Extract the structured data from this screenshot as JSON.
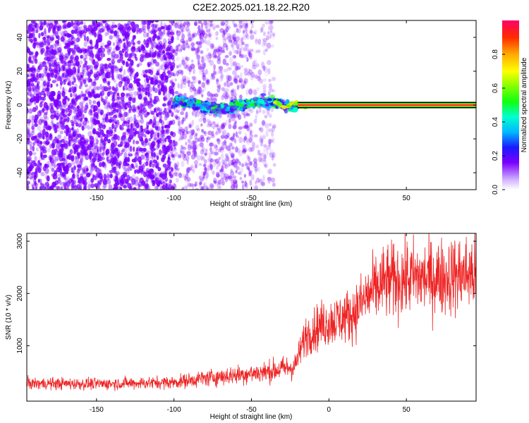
{
  "title": "C2E2.2025.021.18.22.R20",
  "colors": {
    "specgram_low": "#7B00FF",
    "snr_line": "#EE2222",
    "carrier_center": "#FF1133",
    "carrier_edge": "#22DD00"
  },
  "chart_data": [
    {
      "type": "heatmap",
      "title": "C2E2.2025.021.18.22.R20",
      "xlabel": "Height of straight line (km)",
      "ylabel": "Frequency (Hz)",
      "xlim": [
        -195,
        95
      ],
      "ylim": [
        -50,
        50
      ],
      "xticks": [
        -150,
        -100,
        -50,
        0,
        50
      ],
      "yticks": [
        -40,
        -20,
        0,
        20,
        40
      ],
      "colorbar": {
        "label": "Normalized spectral amplitude",
        "range": [
          0.0,
          1.0
        ],
        "ticks": [
          0.0,
          0.2,
          0.4,
          0.6,
          0.8
        ],
        "tick_labels": [
          "0.0",
          "0.2",
          "0.4",
          "0.6",
          "0.8"
        ]
      },
      "carrier": {
        "frequency_hz": 0,
        "from_km": -20,
        "to_km": 95,
        "amplitude": 1.0
      },
      "noise_zones": [
        {
          "from_km": -195,
          "to_km": -100,
          "density": "high",
          "amplitude": 0.15
        },
        {
          "from_km": -100,
          "to_km": -50,
          "density": "medium",
          "amplitude": 0.1
        },
        {
          "from_km": -50,
          "to_km": -35,
          "density": "low",
          "amplitude": 0.05
        }
      ],
      "signal_band": {
        "from_km": -100,
        "to_km": -20,
        "freq_spread_hz": 5,
        "amplitude": 0.25
      }
    },
    {
      "type": "line",
      "xlabel": "Height of straight line (km)",
      "ylabel": "SNR (10 * v/v)",
      "xlim": [
        -195,
        95
      ],
      "ylim": [
        -60,
        3150
      ],
      "xticks": [
        -150,
        -100,
        -50,
        0,
        50
      ],
      "yticks": [
        1000,
        2000,
        3000
      ],
      "series": [
        {
          "name": "SNR",
          "x": [
            -195,
            -150,
            -100,
            -80,
            -60,
            -40,
            -30,
            -22,
            -15,
            -5,
            5,
            15,
            25,
            35,
            50,
            70,
            95
          ],
          "y": [
            280,
            270,
            300,
            380,
            440,
            500,
            560,
            600,
            1200,
            1400,
            1500,
            1600,
            1950,
            2200,
            2300,
            2300,
            2400
          ]
        }
      ]
    }
  ]
}
